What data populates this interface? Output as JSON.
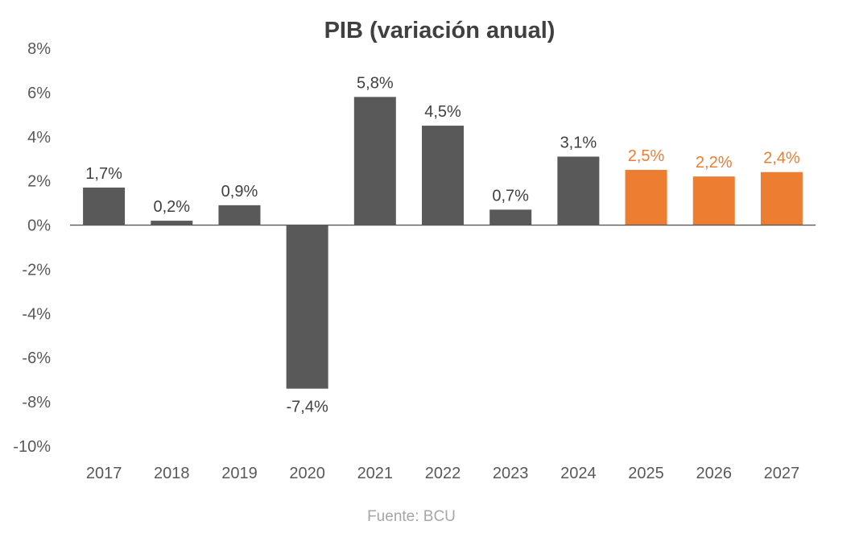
{
  "chart_data": {
    "type": "bar",
    "title": "PIB (variación anual)",
    "source": "Fuente: BCU",
    "categories": [
      "2017",
      "2018",
      "2019",
      "2020",
      "2021",
      "2022",
      "2023",
      "2024",
      "2025",
      "2026",
      "2027"
    ],
    "values": [
      1.7,
      0.2,
      0.9,
      -7.4,
      5.8,
      4.5,
      0.7,
      3.1,
      2.5,
      2.2,
      2.4
    ],
    "value_labels": [
      "1,7%",
      "0,2%",
      "0,9%",
      "-7,4%",
      "5,8%",
      "4,5%",
      "0,7%",
      "3,1%",
      "2,5%",
      "2,2%",
      "2,4%"
    ],
    "projected": [
      false,
      false,
      false,
      false,
      false,
      false,
      false,
      false,
      true,
      true,
      true
    ],
    "y_ticks": [
      8,
      6,
      4,
      2,
      0,
      -2,
      -4,
      -6,
      -8,
      -10
    ],
    "y_tick_labels": [
      "8%",
      "6%",
      "4%",
      "2%",
      "0%",
      "-2%",
      "-4%",
      "-6%",
      "-8%",
      "-10%"
    ],
    "ylim": [
      -10,
      8
    ],
    "xlabel": "",
    "ylabel": "",
    "grid": false,
    "legend": "none",
    "colors": {
      "actual": "#595959",
      "projected": "#ed7d31",
      "actual_label": "#404040",
      "projected_label": "#ed7d31",
      "axis": "#595959"
    }
  }
}
